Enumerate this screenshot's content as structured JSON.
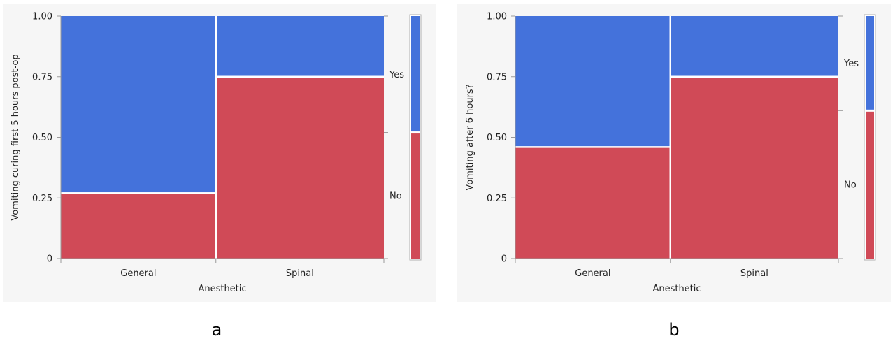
{
  "colors": {
    "yes": "#4472DB",
    "no": "#D04A57",
    "background": "#F6F6F6"
  },
  "panel_letters": [
    "a",
    "b"
  ],
  "chart_data": [
    {
      "type": "mosaic",
      "title": "",
      "xlabel": "Anesthetic",
      "ylabel": "Vomiting curing first 5 hours post-op",
      "ylim": [
        0,
        1
      ],
      "yticks": [
        "0",
        "0.25",
        "0.50",
        "0.75",
        "1.00"
      ],
      "yticks_values": [
        0,
        0.25,
        0.5,
        0.75,
        1.0
      ],
      "categories": [
        "General",
        "Spinal"
      ],
      "category_widths": [
        0.48,
        0.52
      ],
      "series": [
        {
          "name": "No",
          "color": "#D04A57",
          "values": [
            0.27,
            0.75
          ]
        },
        {
          "name": "Yes",
          "color": "#4472DB",
          "values": [
            0.73,
            0.25
          ]
        }
      ],
      "right_labels": [
        "Yes",
        "No"
      ],
      "marginal": {
        "No": 0.52,
        "Yes": 0.48
      },
      "grid": false
    },
    {
      "type": "mosaic",
      "title": "",
      "xlabel": "Anesthetic",
      "ylabel": "Vomiting after 6 hours?",
      "ylim": [
        0,
        1
      ],
      "yticks": [
        "0",
        "0.25",
        "0.50",
        "0.75",
        "1.00"
      ],
      "yticks_values": [
        0,
        0.25,
        0.5,
        0.75,
        1.0
      ],
      "categories": [
        "General",
        "Spinal"
      ],
      "category_widths": [
        0.48,
        0.52
      ],
      "series": [
        {
          "name": "No",
          "color": "#D04A57",
          "values": [
            0.46,
            0.75
          ]
        },
        {
          "name": "Yes",
          "color": "#4472DB",
          "values": [
            0.54,
            0.25
          ]
        }
      ],
      "right_labels": [
        "Yes",
        "No"
      ],
      "marginal": {
        "No": 0.61,
        "Yes": 0.39
      },
      "grid": false
    }
  ]
}
